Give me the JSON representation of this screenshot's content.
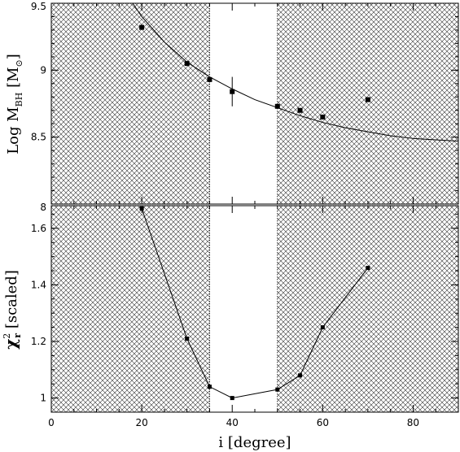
{
  "chart_data": [
    {
      "type": "scatter",
      "panel": "top",
      "ylabel": "Log M_BH [M_⊙]",
      "ylabel_parts": {
        "main": "Log  M",
        "sub": "BH",
        "unit_open": " [M",
        "unit_sub": "⊙",
        "unit_close": "]"
      },
      "xlim": [
        0,
        90
      ],
      "ylim": [
        8,
        9.5
      ],
      "yticks": [
        8,
        8.5,
        9,
        9.5
      ],
      "ytick_labels": [
        "8",
        "8.5",
        "9",
        "9.5"
      ],
      "hatched_regions": [
        [
          0,
          35
        ],
        [
          50,
          90
        ]
      ],
      "series": [
        {
          "points": [
            {
              "x": 20,
              "y": 9.32
            },
            {
              "x": 30,
              "y": 9.05
            },
            {
              "x": 35,
              "y": 8.93
            },
            {
              "x": 40,
              "y": 8.84,
              "yerr": 0.11
            },
            {
              "x": 50,
              "y": 8.73
            },
            {
              "x": 55,
              "y": 8.7
            },
            {
              "x": 60,
              "y": 8.65
            },
            {
              "x": 70,
              "y": 8.78
            }
          ]
        }
      ],
      "curve": {
        "points": [
          [
            18,
            9.5
          ],
          [
            20,
            9.4
          ],
          [
            25,
            9.21
          ],
          [
            30,
            9.06
          ],
          [
            35,
            8.95
          ],
          [
            40,
            8.86
          ],
          [
            45,
            8.78
          ],
          [
            50,
            8.72
          ],
          [
            55,
            8.66
          ],
          [
            60,
            8.61
          ],
          [
            65,
            8.57
          ],
          [
            70,
            8.54
          ],
          [
            75,
            8.51
          ],
          [
            80,
            8.49
          ],
          [
            85,
            8.48
          ],
          [
            90,
            8.47
          ]
        ]
      },
      "grid": false
    },
    {
      "type": "line",
      "panel": "bottom",
      "xlabel": "i [degree]",
      "ylabel": "χ²_r [scaled]",
      "ylabel_parts": {
        "chi": "χ",
        "sup": "2",
        "sub": "r",
        "rest": " [scaled]"
      },
      "xlim": [
        0,
        90
      ],
      "ylim": [
        0.95,
        1.68
      ],
      "xticks": [
        0,
        20,
        40,
        60,
        80
      ],
      "xtick_labels": [
        "0",
        "20",
        "40",
        "60",
        "80"
      ],
      "yticks": [
        1,
        1.2,
        1.4,
        1.6
      ],
      "ytick_labels": [
        "1",
        "1.2",
        "1.4",
        "1.6"
      ],
      "hatched_regions": [
        [
          0,
          35
        ],
        [
          50,
          90
        ]
      ],
      "series": [
        {
          "points": [
            {
              "x": 20,
              "y": 1.67
            },
            {
              "x": 30,
              "y": 1.21
            },
            {
              "x": 35,
              "y": 1.04
            },
            {
              "x": 40,
              "y": 1.0
            },
            {
              "x": 50,
              "y": 1.03
            },
            {
              "x": 55,
              "y": 1.08
            },
            {
              "x": 60,
              "y": 1.25
            },
            {
              "x": 70,
              "y": 1.46
            }
          ]
        }
      ],
      "grid": false
    }
  ]
}
